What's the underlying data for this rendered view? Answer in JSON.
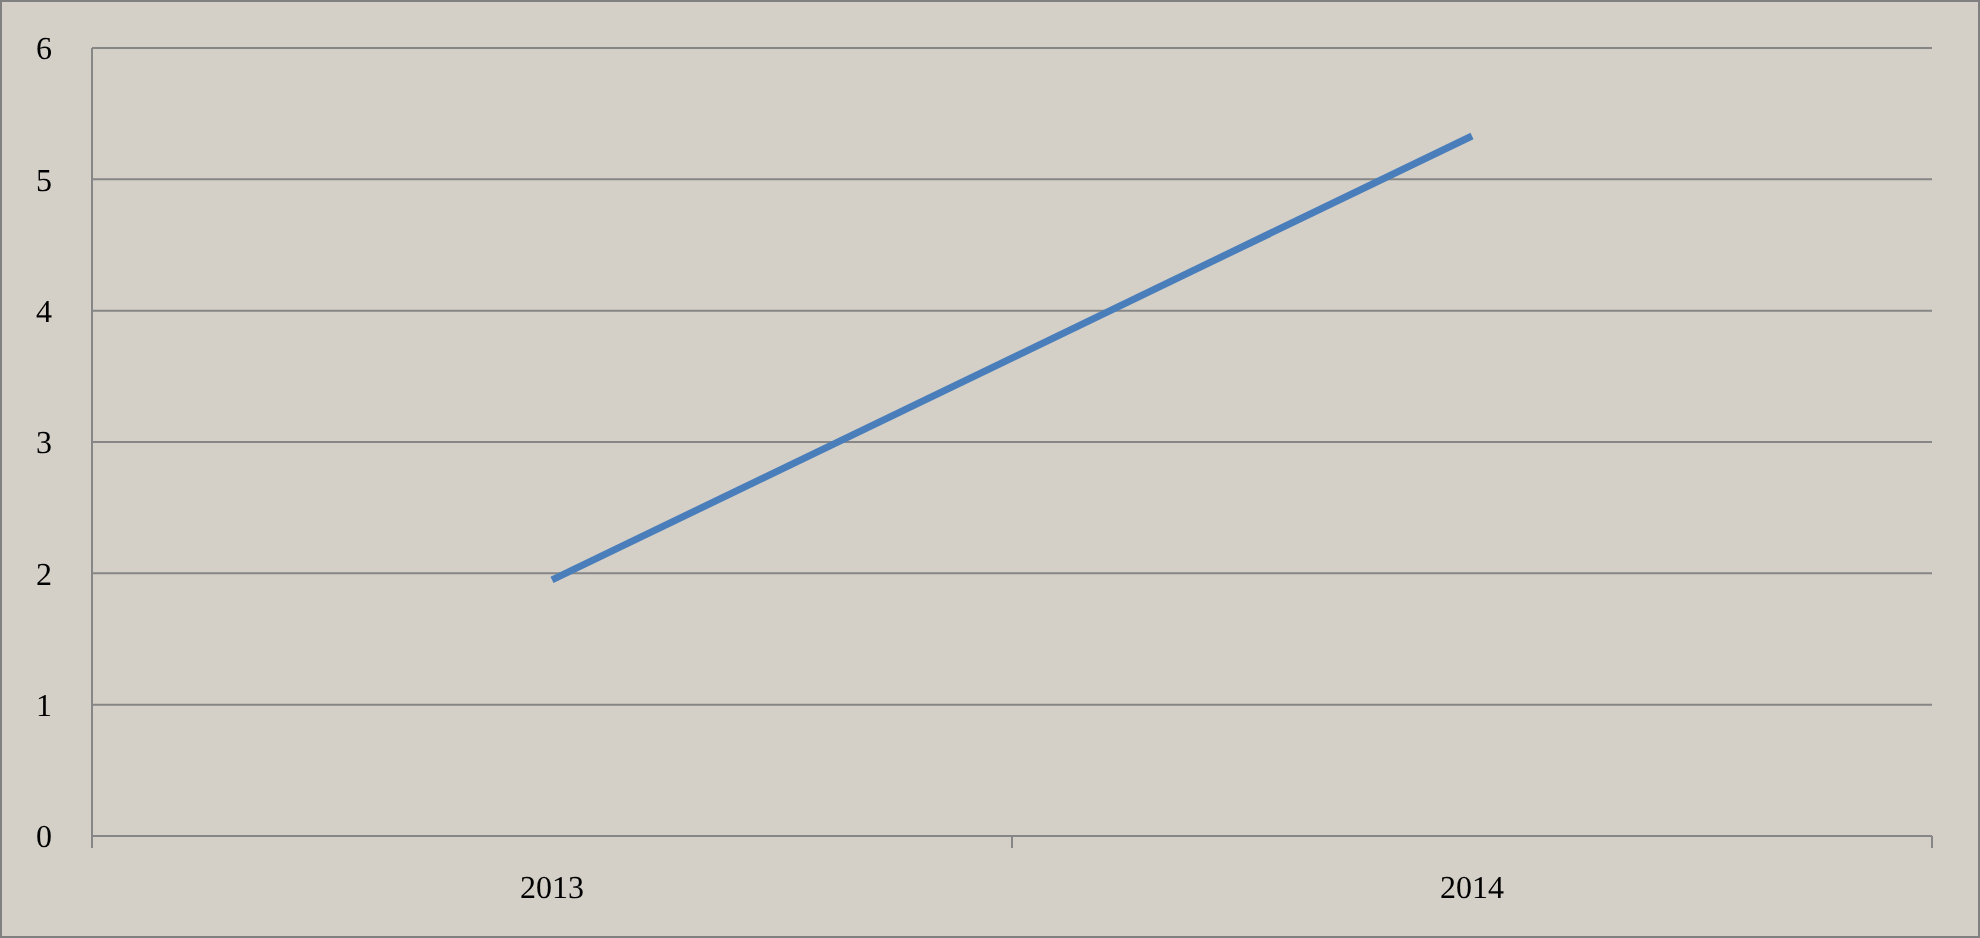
{
  "chart_data": {
    "type": "line",
    "categories": [
      "2013",
      "2014"
    ],
    "series": [
      {
        "color": "#4a7ebb",
        "values": [
          1.95,
          5.33
        ]
      }
    ],
    "ylim": [
      0,
      6
    ],
    "yticks": [
      0,
      1,
      2,
      3,
      4,
      5,
      6
    ],
    "grid": "y",
    "marker": "none"
  }
}
